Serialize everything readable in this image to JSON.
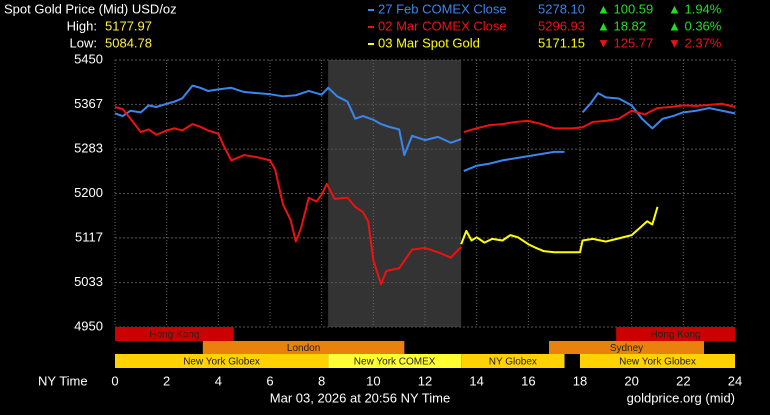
{
  "chart_data": {
    "type": "line",
    "title": "Spot Gold Price (Mid) USD/oz",
    "high_label": "High:",
    "high": "5177.97",
    "low_label": "Low:",
    "low": "5084.78",
    "x_label": "NY Time",
    "footer_left": "Mar 03, 2026 at 20:56 NY Time",
    "footer_right": "goldprice.org (mid)",
    "xlim": [
      0,
      24
    ],
    "xticks": [
      0,
      2,
      4,
      6,
      8,
      10,
      12,
      14,
      16,
      18,
      20,
      22,
      24
    ],
    "ylim": [
      4950,
      5450
    ],
    "yticks": [
      5450,
      5367,
      5283,
      5200,
      5117,
      5033,
      4950
    ],
    "grid": true,
    "shaded": {
      "start": 8.25,
      "end": 13.4,
      "color": "#333333"
    },
    "series": [
      {
        "name": "27 Feb COMEX Close",
        "color": "#3a86ee",
        "close": "5278.10",
        "change": "▲ 100.59",
        "change_pct": "▲ 1.94%",
        "change_color": "#22dd22",
        "x": [
          0,
          0.3,
          0.6,
          1,
          1.3,
          1.6,
          2,
          2.3,
          2.6,
          3,
          3.3,
          3.6,
          4,
          4.5,
          5,
          5.5,
          6,
          6.5,
          7,
          7.5,
          8,
          8.25,
          8.6,
          9,
          9.3,
          9.6,
          10,
          10.3,
          10.6,
          11,
          11.2,
          11.5,
          12,
          12.5,
          13,
          13.4,
          13.45,
          13.5,
          14,
          14.5,
          15,
          15.5,
          16,
          16.5,
          17,
          17.4,
          17.7,
          18.1,
          18.4,
          18.7,
          19,
          19.5,
          20,
          20.4,
          20.8,
          21.2,
          21.6,
          22,
          22.5,
          23,
          23.5,
          24
        ],
        "values": [
          5350,
          5345,
          5355,
          5352,
          5365,
          5362,
          5368,
          5372,
          5378,
          5402,
          5398,
          5392,
          5395,
          5398,
          5390,
          5388,
          5386,
          5382,
          5384,
          5392,
          5385,
          5398,
          5382,
          5372,
          5340,
          5345,
          5338,
          5330,
          5325,
          5320,
          5272,
          5308,
          5300,
          5306,
          5295,
          5302,
          null,
          5242,
          5252,
          5256,
          5262,
          5266,
          5270,
          5274,
          5278,
          5278,
          null,
          5352,
          5368,
          5388,
          5380,
          5378,
          5365,
          5340,
          5322,
          5340,
          5345,
          5352,
          5355,
          5360,
          5355,
          5350
        ]
      },
      {
        "name": "02 Mar COMEX Close",
        "color": "#ee1111",
        "close": "5296.93",
        "change": "▲ 18.82",
        "change_pct": "▲ 0.36%",
        "change_color": "#22dd22",
        "x": [
          0,
          0.3,
          0.6,
          1,
          1.3,
          1.6,
          2,
          2.3,
          2.6,
          3,
          3.3,
          3.6,
          4,
          4.2,
          4.5,
          5,
          5.5,
          6,
          6.2,
          6.5,
          6.8,
          7,
          7.2,
          7.5,
          7.8,
          8,
          8.2,
          8.5,
          9,
          9.3,
          9.6,
          9.8,
          10,
          10.3,
          10.5,
          11,
          11.5,
          12,
          12.5,
          13,
          13.4,
          13.45,
          13.5,
          14,
          14.5,
          15,
          15.5,
          16,
          16.5,
          17,
          17.4,
          17.7,
          18.1,
          18.5,
          19,
          19.5,
          20,
          20.5,
          21,
          21.5,
          22,
          22.5,
          23,
          23.5,
          24
        ],
        "values": [
          5362,
          5358,
          5340,
          5315,
          5320,
          5310,
          5318,
          5322,
          5318,
          5330,
          5325,
          5318,
          5312,
          5290,
          5262,
          5272,
          5268,
          5262,
          5245,
          5180,
          5150,
          5110,
          5135,
          5192,
          5185,
          5198,
          5218,
          5190,
          5192,
          5175,
          5165,
          5148,
          5075,
          5030,
          5055,
          5060,
          5095,
          5098,
          5090,
          5080,
          5100,
          null,
          5315,
          5322,
          5328,
          5330,
          5334,
          5336,
          5330,
          5322,
          5322,
          5322,
          5324,
          5334,
          5336,
          5340,
          5355,
          5348,
          5360,
          5362,
          5365,
          5364,
          5366,
          5368,
          5362
        ]
      },
      {
        "name": "03 Mar Spot Gold",
        "color": "#ffff00",
        "close": "5171.15",
        "change": "▼ 125.77",
        "change_pct": "▼ 2.37%",
        "change_color": "#ee1111",
        "x": [
          13.4,
          13.6,
          13.8,
          14,
          14.3,
          14.6,
          15,
          15.3,
          15.6,
          16,
          16.3,
          16.6,
          17,
          17.4,
          17.7,
          18,
          18.1,
          18.5,
          19,
          19.5,
          20,
          20.3,
          20.6,
          20.8,
          21
        ],
        "values": [
          5105,
          5130,
          5112,
          5118,
          5108,
          5115,
          5112,
          5122,
          5118,
          5105,
          5098,
          5092,
          5090,
          5090,
          5090,
          5090,
          5112,
          5115,
          5110,
          5116,
          5122,
          5135,
          5148,
          5142,
          5175
        ]
      }
    ],
    "sessions": [
      [
        {
          "label": "Hong Kong",
          "start": 0,
          "end": 4.6,
          "color": "#cc0000"
        },
        {
          "label": "Hong Kong",
          "start": 19.4,
          "end": 24,
          "color": "#cc0000"
        }
      ],
      [
        {
          "label": "London",
          "start": 3.4,
          "end": 11.2,
          "color": "#e8820c"
        },
        {
          "label": "Sydney",
          "start": 16.8,
          "end": 22.8,
          "color": "#e8820c"
        }
      ],
      [
        {
          "label": "New York Globex",
          "start": 0,
          "end": 8.25,
          "color": "#ffd200"
        },
        {
          "label": "New York COMEX",
          "start": 8.25,
          "end": 13.4,
          "color": "#ffff33"
        },
        {
          "label": "NY Globex",
          "start": 13.4,
          "end": 17.4,
          "color": "#ffd200"
        },
        {
          "label": "New York Globex",
          "start": 18,
          "end": 24,
          "color": "#ffd200"
        }
      ]
    ]
  }
}
